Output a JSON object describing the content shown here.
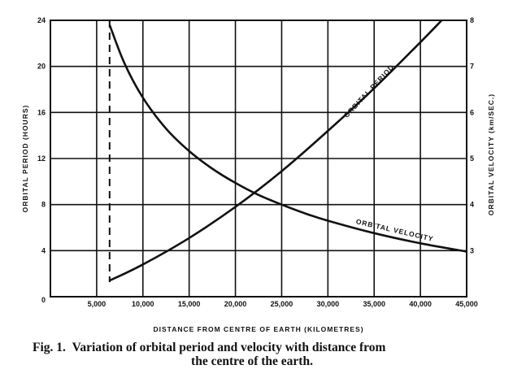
{
  "chart_data": {
    "type": "line",
    "xlabel": "DISTANCE FROM CENTRE OF EARTH (KILOMETRES)",
    "ylabel_left": "ORBITAL PERIOD (HOURS)",
    "ylabel_right": "ORBITAL VELOCITY (km/SEC.)",
    "xlim": [
      0,
      45000
    ],
    "ylim_left": [
      0,
      24
    ],
    "ylim_right": [
      2,
      8
    ],
    "x_tick_labels": [
      "5,000",
      "10,000",
      "15,000",
      "20,000",
      "25,000",
      "30,000",
      "35,000",
      "40,000",
      "45,000"
    ],
    "y_left_tick_labels": [
      "0",
      "4",
      "8",
      "12",
      "16",
      "20",
      "24"
    ],
    "y_right_tick_labels": [
      "3",
      "4",
      "5",
      "6",
      "7",
      "8"
    ],
    "grid": true,
    "reference_line": {
      "x": 6400,
      "style": "dashed"
    },
    "series": [
      {
        "name": "ORBITAL PERIOD",
        "axis": "left",
        "x": [
          6400,
          10000,
          15000,
          20000,
          25000,
          30000,
          35000,
          40000,
          42300
        ],
        "y": [
          1.4,
          2.8,
          5.1,
          7.8,
          10.9,
          14.4,
          18.1,
          22.1,
          24.0
        ]
      },
      {
        "name": "ORBITAL VELOCITY",
        "axis": "right",
        "x": [
          6400,
          8000,
          10000,
          12500,
          15000,
          17500,
          20000,
          22500,
          25000,
          27500,
          30000,
          35000,
          40000,
          45000
        ],
        "y": [
          7.9,
          7.07,
          6.32,
          5.65,
          5.16,
          4.78,
          4.47,
          4.21,
          4.0,
          3.81,
          3.65,
          3.38,
          3.16,
          2.98
        ]
      }
    ]
  },
  "caption": {
    "prefix": "Fig. 1.",
    "line1": "Variation of orbital period and velocity with distance from",
    "line2": "the centre of the earth."
  }
}
